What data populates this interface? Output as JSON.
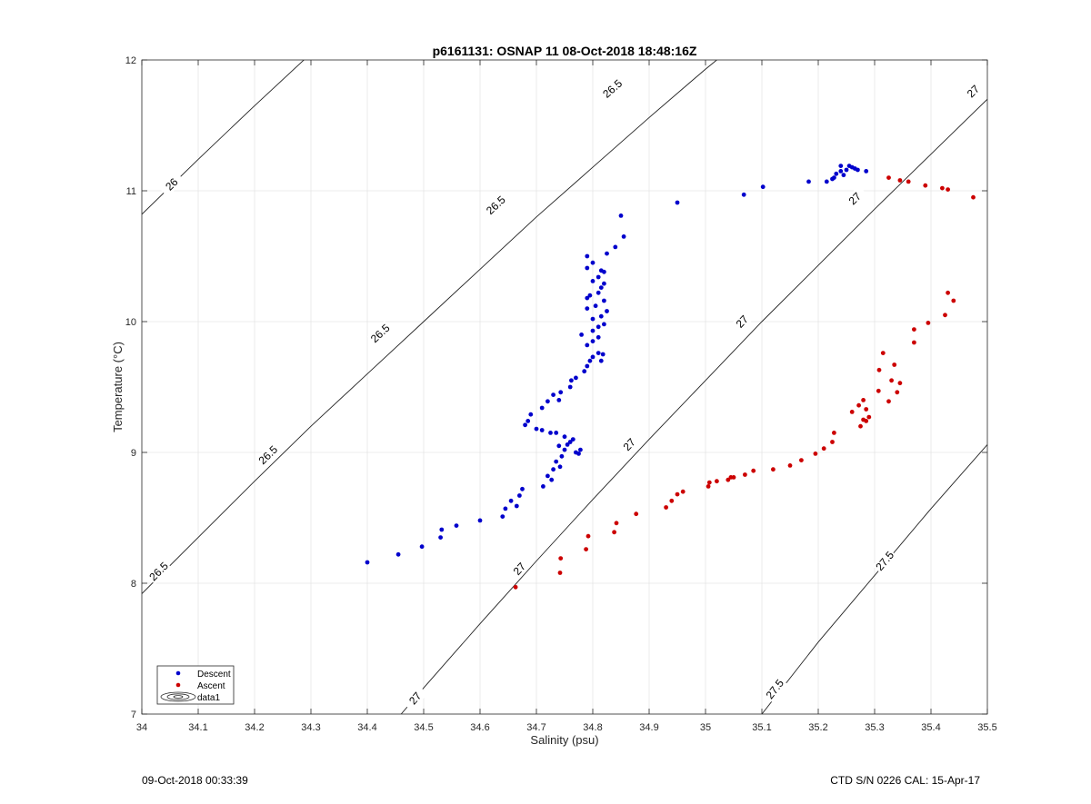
{
  "chart_data": {
    "type": "scatter",
    "title": "p6161131: OSNAP 11 08-Oct-2018 18:48:16Z",
    "xlabel": "Salinity (psu)",
    "ylabel": "Temperature (°C)",
    "xlim": [
      34,
      35.5
    ],
    "ylim": [
      7,
      12
    ],
    "xticks": [
      "34",
      "34.1",
      "34.2",
      "34.3",
      "34.4",
      "34.5",
      "34.6",
      "34.7",
      "34.8",
      "34.9",
      "35",
      "35.1",
      "35.2",
      "35.3",
      "35.4",
      "35.5"
    ],
    "yticks": [
      "7",
      "8",
      "9",
      "10",
      "11",
      "12"
    ],
    "grid": true,
    "legend_position": "bottom-left",
    "legend": [
      "Descent",
      "Ascent",
      "data1"
    ],
    "series": [
      {
        "name": "Descent",
        "color": "#0000cc",
        "points": [
          [
            34.4,
            8.16
          ],
          [
            34.455,
            8.22
          ],
          [
            34.497,
            8.28
          ],
          [
            34.53,
            8.35
          ],
          [
            34.532,
            8.41
          ],
          [
            34.558,
            8.44
          ],
          [
            34.6,
            8.48
          ],
          [
            34.64,
            8.51
          ],
          [
            34.645,
            8.57
          ],
          [
            34.655,
            8.63
          ],
          [
            34.665,
            8.59
          ],
          [
            34.67,
            8.67
          ],
          [
            34.675,
            8.72
          ],
          [
            34.712,
            8.74
          ],
          [
            34.72,
            8.82
          ],
          [
            34.727,
            8.79
          ],
          [
            34.73,
            8.87
          ],
          [
            34.735,
            8.93
          ],
          [
            34.742,
            8.89
          ],
          [
            34.745,
            8.97
          ],
          [
            34.75,
            9.02
          ],
          [
            34.755,
            9.06
          ],
          [
            34.76,
            9.08
          ],
          [
            34.765,
            9.1
          ],
          [
            34.77,
            9.0
          ],
          [
            34.775,
            8.99
          ],
          [
            34.778,
            9.02
          ],
          [
            34.74,
            9.05
          ],
          [
            34.75,
            9.12
          ],
          [
            34.735,
            9.15
          ],
          [
            34.725,
            9.15
          ],
          [
            34.71,
            9.17
          ],
          [
            34.7,
            9.18
          ],
          [
            34.68,
            9.21
          ],
          [
            34.685,
            9.24
          ],
          [
            34.69,
            9.29
          ],
          [
            34.71,
            9.34
          ],
          [
            34.72,
            9.39
          ],
          [
            34.73,
            9.44
          ],
          [
            34.74,
            9.4
          ],
          [
            34.743,
            9.46
          ],
          [
            34.76,
            9.5
          ],
          [
            34.762,
            9.55
          ],
          [
            34.77,
            9.57
          ],
          [
            34.785,
            9.62
          ],
          [
            34.79,
            9.66
          ],
          [
            34.795,
            9.7
          ],
          [
            34.8,
            9.73
          ],
          [
            34.81,
            9.76
          ],
          [
            34.815,
            9.7
          ],
          [
            34.818,
            9.75
          ],
          [
            34.79,
            9.82
          ],
          [
            34.8,
            9.85
          ],
          [
            34.81,
            9.88
          ],
          [
            34.78,
            9.9
          ],
          [
            34.8,
            9.93
          ],
          [
            34.81,
            9.96
          ],
          [
            34.82,
            9.98
          ],
          [
            34.8,
            10.02
          ],
          [
            34.815,
            10.04
          ],
          [
            34.825,
            10.08
          ],
          [
            34.79,
            10.1
          ],
          [
            34.805,
            10.12
          ],
          [
            34.82,
            10.16
          ],
          [
            34.79,
            10.18
          ],
          [
            34.795,
            10.2
          ],
          [
            34.81,
            10.22
          ],
          [
            34.815,
            10.26
          ],
          [
            34.82,
            10.29
          ],
          [
            34.8,
            10.31
          ],
          [
            34.81,
            10.34
          ],
          [
            34.82,
            10.38
          ],
          [
            34.815,
            10.39
          ],
          [
            34.79,
            10.41
          ],
          [
            34.8,
            10.45
          ],
          [
            34.79,
            10.5
          ],
          [
            34.825,
            10.52
          ],
          [
            34.84,
            10.57
          ],
          [
            34.855,
            10.65
          ],
          [
            34.85,
            10.81
          ],
          [
            34.95,
            10.91
          ],
          [
            35.068,
            10.97
          ],
          [
            35.102,
            11.03
          ],
          [
            35.183,
            11.07
          ],
          [
            35.215,
            11.07
          ],
          [
            35.225,
            11.09
          ],
          [
            35.228,
            11.1
          ],
          [
            35.232,
            11.13
          ],
          [
            35.24,
            11.15
          ],
          [
            35.245,
            11.12
          ],
          [
            35.25,
            11.16
          ],
          [
            35.255,
            11.19
          ],
          [
            35.26,
            11.18
          ],
          [
            35.265,
            11.17
          ],
          [
            35.27,
            11.16
          ],
          [
            35.285,
            11.15
          ],
          [
            35.24,
            11.19
          ]
        ]
      },
      {
        "name": "Ascent",
        "color": "#cc0000",
        "points": [
          [
            34.663,
            7.97
          ],
          [
            34.742,
            8.08
          ],
          [
            34.743,
            8.19
          ],
          [
            34.788,
            8.26
          ],
          [
            34.792,
            8.36
          ],
          [
            34.838,
            8.39
          ],
          [
            34.842,
            8.46
          ],
          [
            34.877,
            8.53
          ],
          [
            34.93,
            8.58
          ],
          [
            34.94,
            8.63
          ],
          [
            34.95,
            8.68
          ],
          [
            34.96,
            8.7
          ],
          [
            35.005,
            8.74
          ],
          [
            35.007,
            8.77
          ],
          [
            35.02,
            8.78
          ],
          [
            35.04,
            8.79
          ],
          [
            35.045,
            8.81
          ],
          [
            35.05,
            8.81
          ],
          [
            35.07,
            8.83
          ],
          [
            35.085,
            8.86
          ],
          [
            35.12,
            8.87
          ],
          [
            35.15,
            8.9
          ],
          [
            35.17,
            8.94
          ],
          [
            35.195,
            8.99
          ],
          [
            35.21,
            9.03
          ],
          [
            35.225,
            9.08
          ],
          [
            35.228,
            9.15
          ],
          [
            35.26,
            9.31
          ],
          [
            35.275,
            9.2
          ],
          [
            35.28,
            9.25
          ],
          [
            35.285,
            9.24
          ],
          [
            35.29,
            9.27
          ],
          [
            35.272,
            9.36
          ],
          [
            35.28,
            9.4
          ],
          [
            35.285,
            9.33
          ],
          [
            35.307,
            9.47
          ],
          [
            35.325,
            9.39
          ],
          [
            35.33,
            9.55
          ],
          [
            35.34,
            9.46
          ],
          [
            35.345,
            9.53
          ],
          [
            35.308,
            9.63
          ],
          [
            35.315,
            9.76
          ],
          [
            35.335,
            9.67
          ],
          [
            35.37,
            9.84
          ],
          [
            35.37,
            9.94
          ],
          [
            35.395,
            9.99
          ],
          [
            35.425,
            10.05
          ],
          [
            35.43,
            10.22
          ],
          [
            35.44,
            10.16
          ],
          [
            35.325,
            11.1
          ],
          [
            35.345,
            11.08
          ],
          [
            35.36,
            11.07
          ],
          [
            35.39,
            11.04
          ],
          [
            35.42,
            11.02
          ],
          [
            35.43,
            11.01
          ],
          [
            35.475,
            10.95
          ]
        ]
      }
    ],
    "isopycnals": [
      {
        "sigma": 26.0,
        "points": [
          [
            34.0,
            10.82
          ],
          [
            34.1,
            11.24
          ],
          [
            34.2,
            11.65
          ],
          [
            34.3,
            12.05
          ]
        ],
        "labels": [
          {
            "text": "26",
            "at": [
              34.053,
              11.05
            ]
          }
        ]
      },
      {
        "sigma": 26.5,
        "points": [
          [
            34.0,
            7.92
          ],
          [
            34.1,
            8.35
          ],
          [
            34.2,
            8.78
          ],
          [
            34.3,
            9.2
          ],
          [
            34.4,
            9.6
          ],
          [
            34.5,
            10.0
          ],
          [
            34.6,
            10.4
          ],
          [
            34.7,
            10.8
          ],
          [
            34.8,
            11.18
          ],
          [
            34.9,
            11.56
          ],
          [
            35.0,
            11.93
          ],
          [
            35.02,
            12.0
          ]
        ],
        "labels": [
          {
            "text": "26.5",
            "at": [
              34.03,
              8.09
            ]
          },
          {
            "text": "26.5",
            "at": [
              34.224,
              8.98
            ]
          },
          {
            "text": "26.5",
            "at": [
              34.423,
              9.91
            ]
          },
          {
            "text": "26.5",
            "at": [
              34.628,
              10.89
            ]
          },
          {
            "text": "26.5",
            "at": [
              34.835,
              11.78
            ]
          }
        ]
      },
      {
        "sigma": 27.0,
        "points": [
          [
            34.46,
            7.0
          ],
          [
            34.5,
            7.2
          ],
          [
            34.6,
            7.69
          ],
          [
            34.7,
            8.17
          ],
          [
            34.8,
            8.64
          ],
          [
            34.9,
            9.1
          ],
          [
            35.0,
            9.55
          ],
          [
            35.1,
            10.0
          ],
          [
            35.2,
            10.43
          ],
          [
            35.3,
            10.86
          ],
          [
            35.4,
            11.28
          ],
          [
            35.5,
            11.7
          ]
        ],
        "labels": [
          {
            "text": "27",
            "at": [
              34.485,
              7.12
            ]
          },
          {
            "text": "27",
            "at": [
              34.67,
              8.11
            ]
          },
          {
            "text": "27",
            "at": [
              34.865,
              9.06
            ]
          },
          {
            "text": "27",
            "at": [
              35.065,
              10.0
            ]
          },
          {
            "text": "27",
            "at": [
              35.265,
              10.94
            ]
          },
          {
            "text": "27",
            "at": [
              35.475,
              11.76
            ]
          }
        ]
      },
      {
        "sigma": 27.5,
        "points": [
          [
            35.1,
            7.0
          ],
          [
            35.2,
            7.55
          ],
          [
            35.3,
            8.06
          ],
          [
            35.4,
            8.57
          ],
          [
            35.5,
            9.06
          ]
        ],
        "labels": [
          {
            "text": "27.5",
            "at": [
              35.123,
              7.19
            ]
          },
          {
            "text": "27.5",
            "at": [
              35.318,
              8.17
            ]
          }
        ]
      }
    ]
  },
  "footer": {
    "left": "09-Oct-2018 00:33:39",
    "right": "CTD S/N 0226  CAL: 15-Apr-17"
  }
}
